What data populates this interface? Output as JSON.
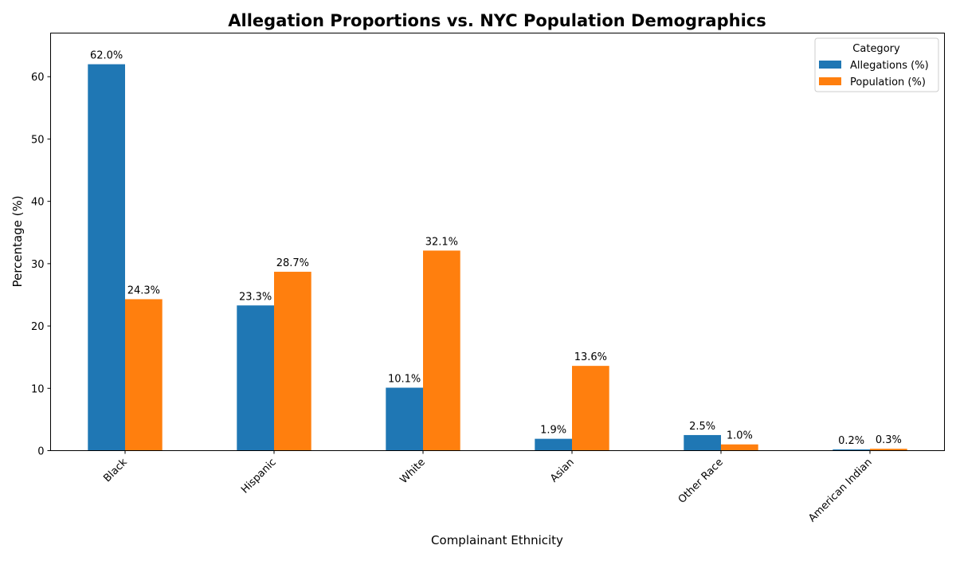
{
  "chart_data": {
    "type": "bar",
    "title": "Allegation Proportions vs. NYC Population Demographics",
    "xlabel": "Complainant Ethnicity",
    "ylabel": "Percentage (%)",
    "categories": [
      "Black",
      "Hispanic",
      "White",
      "Asian",
      "Other Race",
      "American Indian"
    ],
    "series": [
      {
        "name": "Allegations (%)",
        "color": "#1f77b4",
        "values": [
          62.0,
          23.3,
          10.1,
          1.9,
          2.5,
          0.2
        ]
      },
      {
        "name": "Population (%)",
        "color": "#ff7f0e",
        "values": [
          24.3,
          28.7,
          32.1,
          13.6,
          1.0,
          0.3
        ]
      }
    ],
    "ylim": [
      0,
      67
    ],
    "yticks": [
      0,
      10,
      20,
      30,
      40,
      50,
      60
    ],
    "grid": false,
    "legend": {
      "title": "Category",
      "placement": "top-right"
    },
    "data_label_format": "{v}%"
  }
}
